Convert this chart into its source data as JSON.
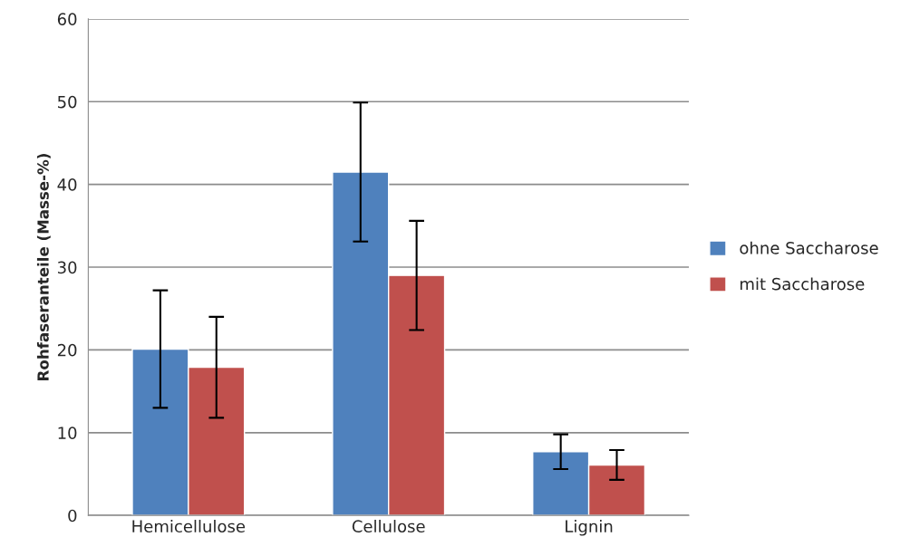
{
  "chart_data": {
    "type": "bar",
    "ylabel": "Rohfaseranteile (Masse-%)",
    "categories": [
      "Hemicellulose",
      "Cellulose",
      "Lignin"
    ],
    "series": [
      {
        "name": "ohne Saccharose",
        "color": "#4f81bd",
        "values": [
          20.1,
          41.5,
          7.7
        ],
        "errors": [
          7.1,
          8.4,
          2.1
        ]
      },
      {
        "name": "mit Saccharose",
        "color": "#c0504d",
        "values": [
          17.9,
          29.0,
          6.1
        ],
        "errors": [
          6.1,
          6.6,
          1.8
        ]
      }
    ],
    "ylim": [
      0,
      60
    ],
    "yticks": [
      0,
      10,
      20,
      30,
      40,
      50,
      60
    ],
    "grid": "y",
    "legend": "right"
  }
}
